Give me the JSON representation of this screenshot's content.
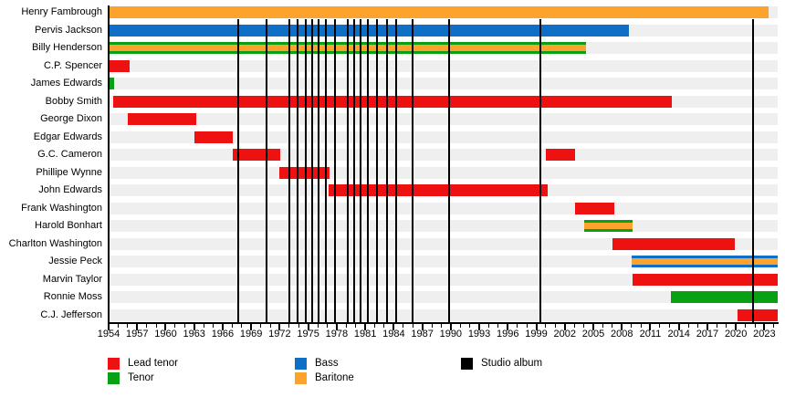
{
  "chart_data": {
    "type": "gantt",
    "description": "Band membership timeline with studio album release markers",
    "x_axis": {
      "start": 1954,
      "end": 2024.4,
      "label_interval": 3,
      "minor_interval": 1,
      "tick_labels": [
        "1954",
        "1957",
        "1960",
        "1963",
        "1966",
        "1969",
        "1972",
        "1975",
        "1978",
        "1981",
        "1984",
        "1987",
        "1990",
        "1993",
        "1996",
        "1999",
        "2002",
        "2005",
        "2008",
        "2011",
        "2014",
        "2017",
        "2020",
        "2023"
      ]
    },
    "colors": {
      "Lead tenor": "#ee1111",
      "Tenor": "#09a113",
      "Bass": "#0f6fc6",
      "Baritone": "#fba32c",
      "Studio album": "#000000",
      "row_band": "#efefef"
    },
    "members": [
      {
        "name": "Henry Fambrough",
        "segments": [
          {
            "start": 1954,
            "end": 2023.4,
            "roles": [
              "Baritone"
            ]
          }
        ]
      },
      {
        "name": "Pervis Jackson",
        "segments": [
          {
            "start": 1954,
            "end": 2008.7,
            "roles": [
              "Bass"
            ]
          }
        ]
      },
      {
        "name": "Billy Henderson",
        "segments": [
          {
            "start": 1954,
            "end": 2004.2,
            "roles": [
              "Tenor",
              "Baritone"
            ]
          }
        ]
      },
      {
        "name": "C.P. Spencer",
        "segments": [
          {
            "start": 1954,
            "end": 1956.2,
            "roles": [
              "Lead tenor"
            ]
          }
        ]
      },
      {
        "name": "James Edwards",
        "segments": [
          {
            "start": 1954,
            "end": 1954.6,
            "roles": [
              "Tenor"
            ]
          }
        ]
      },
      {
        "name": "Bobby Smith",
        "segments": [
          {
            "start": 1954.5,
            "end": 2013.3,
            "roles": [
              "Lead tenor"
            ]
          }
        ]
      },
      {
        "name": "George Dixon",
        "segments": [
          {
            "start": 1956,
            "end": 1963.2,
            "roles": [
              "Lead tenor"
            ]
          }
        ]
      },
      {
        "name": "Edgar Edwards",
        "segments": [
          {
            "start": 1963,
            "end": 1967.1,
            "roles": [
              "Lead tenor"
            ]
          }
        ]
      },
      {
        "name": "G.C. Cameron",
        "segments": [
          {
            "start": 1967.1,
            "end": 1972.1,
            "roles": [
              "Lead tenor"
            ]
          },
          {
            "start": 2000,
            "end": 2003.1,
            "roles": [
              "Lead tenor"
            ]
          }
        ]
      },
      {
        "name": "Phillipe Wynne",
        "segments": [
          {
            "start": 1972,
            "end": 1977.2,
            "roles": [
              "Lead tenor"
            ]
          }
        ]
      },
      {
        "name": "John Edwards",
        "segments": [
          {
            "start": 1977.1,
            "end": 2000.2,
            "roles": [
              "Lead tenor"
            ]
          }
        ]
      },
      {
        "name": "Frank Washington",
        "segments": [
          {
            "start": 2003.1,
            "end": 2007.2,
            "roles": [
              "Lead tenor"
            ]
          }
        ]
      },
      {
        "name": "Harold Bonhart",
        "segments": [
          {
            "start": 2004,
            "end": 2009.1,
            "roles": [
              "Tenor",
              "Baritone"
            ]
          }
        ]
      },
      {
        "name": "Charlton Washington",
        "segments": [
          {
            "start": 2007,
            "end": 2019.9,
            "roles": [
              "Lead tenor"
            ]
          }
        ]
      },
      {
        "name": "Jessie Peck",
        "segments": [
          {
            "start": 2009,
            "end": 2024.4,
            "roles": [
              "Bass",
              "Baritone"
            ]
          }
        ]
      },
      {
        "name": "Marvin Taylor",
        "segments": [
          {
            "start": 2009.1,
            "end": 2024.4,
            "roles": [
              "Lead tenor"
            ]
          }
        ]
      },
      {
        "name": "Ronnie Moss",
        "segments": [
          {
            "start": 2013.2,
            "end": 2024.4,
            "roles": [
              "Tenor"
            ]
          }
        ]
      },
      {
        "name": "C.J. Jefferson",
        "segments": [
          {
            "start": 2020.2,
            "end": 2024.4,
            "roles": [
              "Lead tenor"
            ]
          }
        ]
      }
    ],
    "album_marker_years": [
      1967.6,
      1970.6,
      1973.0,
      1973.9,
      1974.7,
      1975.4,
      1976.1,
      1976.9,
      1977.8,
      1979.2,
      1979.8,
      1980.5,
      1981.3,
      1982.2,
      1983.3,
      1984.3,
      1986.0,
      1989.8,
      1999.4,
      2021.8
    ]
  },
  "legend": {
    "items": [
      {
        "label": "Lead tenor",
        "color": "#ee1111"
      },
      {
        "label": "Tenor",
        "color": "#09a113"
      },
      {
        "label": "Bass",
        "color": "#0f6fc6"
      },
      {
        "label": "Baritone",
        "color": "#fba32c"
      },
      {
        "label": "Studio album",
        "color": "#000000"
      }
    ]
  }
}
